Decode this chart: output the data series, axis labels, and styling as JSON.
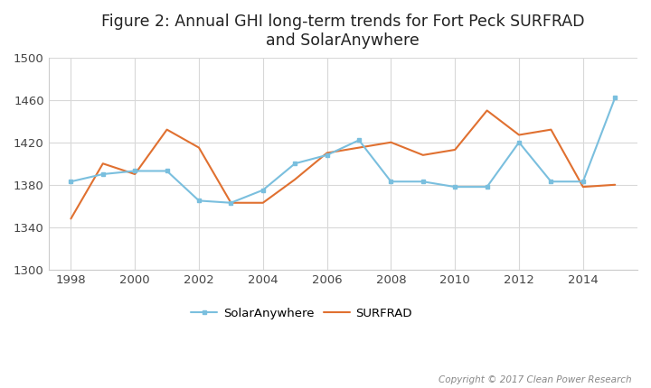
{
  "title": "Figure 2: Annual GHI long-term trends for Fort Peck SURFRAD\nand SolarAnywhere",
  "years": [
    1998,
    1999,
    2000,
    2001,
    2002,
    2003,
    2004,
    2005,
    2006,
    2007,
    2008,
    2009,
    2010,
    2011,
    2012,
    2013,
    2014,
    2015
  ],
  "solaranywhere": [
    1383,
    1390,
    1393,
    1393,
    1365,
    1363,
    1375,
    1400,
    1408,
    1422,
    1383,
    1383,
    1378,
    1378,
    1420,
    1383,
    1383,
    1462
  ],
  "surfrad": [
    1348,
    1400,
    1390,
    1432,
    1415,
    1363,
    1363,
    1385,
    1410,
    1415,
    1420,
    1408,
    1413,
    1450,
    1427,
    1432,
    1378,
    1380
  ],
  "solaranywhere_color": "#7abfde",
  "surfrad_color": "#e07030",
  "ylim": [
    1300,
    1500
  ],
  "yticks": [
    1300,
    1340,
    1380,
    1420,
    1460,
    1500
  ],
  "xticks": [
    1998,
    2000,
    2002,
    2004,
    2006,
    2008,
    2010,
    2012,
    2014
  ],
  "copyright": "Copyright © 2017 Clean Power Research",
  "grid_color": "#d8d8d8",
  "background_color": "#ffffff",
  "legend_sa": "SolarAnywhere",
  "legend_surfrad": "SURFRAD"
}
